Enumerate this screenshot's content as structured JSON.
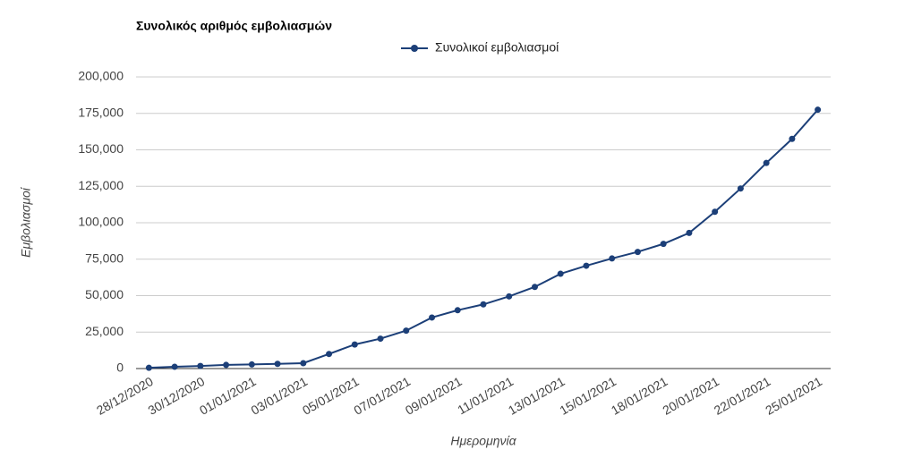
{
  "chart_data": {
    "type": "line",
    "title": "Συνολικός αριθμός εμβολιασμών",
    "xlabel": "Ημερομηνία",
    "ylabel": "Εμβολιασμοί",
    "categories": [
      "28/12/2020",
      null,
      "30/12/2020",
      null,
      "01/01/2021",
      null,
      "03/01/2021",
      null,
      "05/01/2021",
      null,
      "07/01/2021",
      null,
      "09/01/2021",
      null,
      "11/01/2021",
      null,
      "13/01/2021",
      null,
      "15/01/2021",
      null,
      "18/01/2021",
      null,
      "20/01/2021",
      null,
      "22/01/2021",
      null,
      "25/01/2021"
    ],
    "series": [
      {
        "name": "Συνολικοί εμβολιασμοί",
        "color": "#1c3f78",
        "values": [
          500,
          1200,
          1800,
          2500,
          2800,
          3200,
          3700,
          10000,
          16500,
          20500,
          26000,
          35000,
          40000,
          44000,
          49500,
          56000,
          65000,
          70500,
          75500,
          80000,
          85500,
          93000,
          107500,
          123500,
          141000,
          157500,
          177500
        ]
      }
    ],
    "ylim": [
      0,
      200000
    ],
    "yticks": [
      0,
      {
        "value": 25000,
        "label": "25,000"
      },
      {
        "value": 50000,
        "label": "50,000"
      },
      {
        "value": 75000,
        "label": "75,000"
      },
      {
        "value": 100000,
        "label": "100,000"
      },
      {
        "value": 125000,
        "label": "125,000"
      },
      {
        "value": 150000,
        "label": "150,000"
      },
      {
        "value": 175000,
        "label": "175,000"
      },
      {
        "value": 200000,
        "label": "200,000"
      }
    ],
    "grid": true,
    "legend": "top"
  }
}
